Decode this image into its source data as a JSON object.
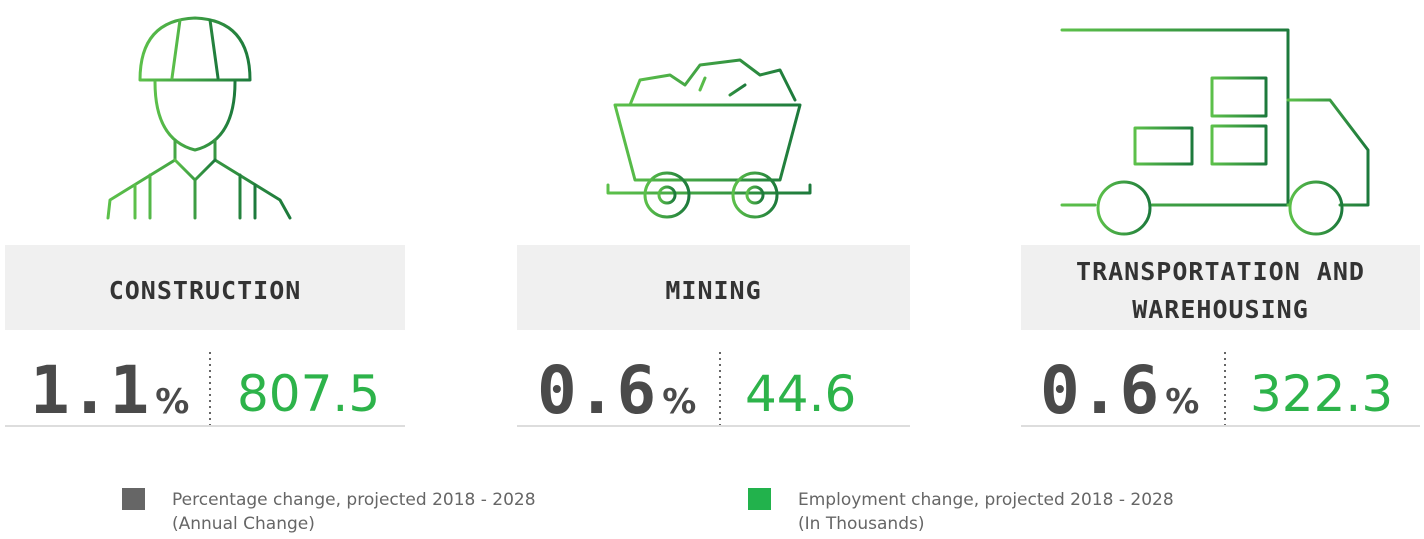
{
  "panels": [
    {
      "name": [
        "CONSTRUCTION"
      ],
      "percent": 1.1,
      "unit": "%",
      "employment": 807.5
    },
    {
      "name": [
        "MINING"
      ],
      "percent": 0.6,
      "unit": "%",
      "employment": 44.6
    },
    {
      "name": [
        "TRANSPORTATION AND",
        "WAREHOUSING"
      ],
      "percent": 0.6,
      "unit": "%",
      "employment": 322.3
    }
  ],
  "legend": [
    {
      "color": "#666666",
      "lines": [
        "Percentage change, projected 2018 - 2028",
        "(Annual Change)"
      ]
    },
    {
      "color": "#22b24c",
      "lines": [
        "Employment change, projected 2018 - 2028",
        "(In Thousands)"
      ]
    }
  ]
}
